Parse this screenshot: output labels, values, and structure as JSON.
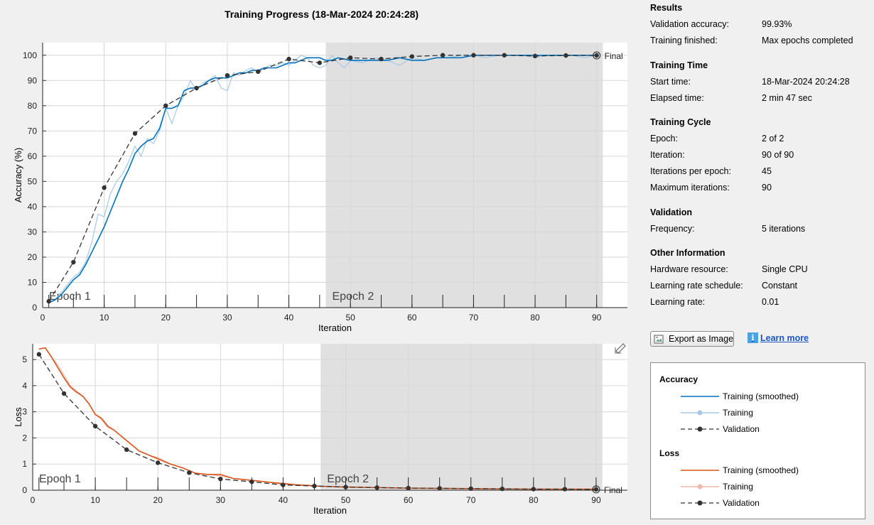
{
  "title": "Training Progress (18-Mar-2024 20:24:28)",
  "results": {
    "heading": "Results",
    "validation_accuracy_label": "Validation accuracy:",
    "validation_accuracy_value": "99.93%",
    "training_finished_label": "Training finished:",
    "training_finished_value": "Max epochs completed"
  },
  "training_time": {
    "heading": "Training Time",
    "start_label": "Start time:",
    "start_value": "18-Mar-2024 20:24:28",
    "elapsed_label": "Elapsed time:",
    "elapsed_value": "2 min 47 sec"
  },
  "training_cycle": {
    "heading": "Training Cycle",
    "epoch_label": "Epoch:",
    "epoch_value": "2 of 2",
    "iteration_label": "Iteration:",
    "iteration_value": "90 of 90",
    "ipe_label": "Iterations per epoch:",
    "ipe_value": "45",
    "max_iter_label": "Maximum iterations:",
    "max_iter_value": "90"
  },
  "validation": {
    "heading": "Validation",
    "frequency_label": "Frequency:",
    "frequency_value": "5 iterations"
  },
  "other": {
    "heading": "Other Information",
    "hardware_label": "Hardware resource:",
    "hardware_value": "Single CPU",
    "schedule_label": "Learning rate schedule:",
    "schedule_value": "Constant",
    "lr_label": "Learning rate:",
    "lr_value": "0.01"
  },
  "buttons": {
    "export": "Export as Image",
    "learn_more": "Learn more"
  },
  "legend": {
    "accuracy_heading": "Accuracy",
    "loss_heading": "Loss",
    "smoothed": "Training (smoothed)",
    "training": "Training",
    "validation": "Validation"
  },
  "colors": {
    "acc_smoothed": "#0072bd",
    "acc_training": "#a6c8e6",
    "loss_smoothed": "#d95319",
    "loss_training": "#f0b8a8",
    "validation": "#333333",
    "epoch_shade": "#e0e0e0"
  },
  "icons": {
    "export": "image-export-icon",
    "learn": "info-icon",
    "edit": "edit-plot-icon"
  },
  "chart_data": [
    {
      "type": "line",
      "xlabel": "Iteration",
      "ylabel": "Accuracy (%)",
      "xlim": [
        0,
        95
      ],
      "ylim": [
        0,
        105
      ],
      "xticks": [
        0,
        10,
        20,
        30,
        40,
        50,
        60,
        70,
        80,
        90
      ],
      "yticks": [
        0,
        10,
        20,
        30,
        40,
        50,
        60,
        70,
        80,
        90,
        100
      ],
      "epochs": [
        {
          "label": "Epoch 1",
          "start": 0,
          "end": 46,
          "shaded": false
        },
        {
          "label": "Epoch 2",
          "start": 46,
          "end": 91,
          "shaded": true
        }
      ],
      "final_label": "Final",
      "series": [
        {
          "name": "Training",
          "x": [
            1,
            2,
            3,
            4,
            5,
            6,
            7,
            8,
            9,
            10,
            11,
            12,
            13,
            14,
            15,
            16,
            17,
            18,
            19,
            20,
            21,
            22,
            23,
            24,
            25,
            26,
            27,
            28,
            29,
            30,
            31,
            32,
            33,
            34,
            35,
            36,
            37,
            38,
            39,
            40,
            41,
            42,
            43,
            44,
            45,
            46,
            47,
            48,
            49,
            50,
            52,
            54,
            56,
            58,
            60,
            62,
            64,
            66,
            68,
            70,
            72,
            74,
            76,
            78,
            80,
            82,
            84,
            86,
            88,
            90
          ],
          "y": [
            2,
            3,
            6,
            9,
            12,
            14,
            18,
            26,
            37,
            36,
            45,
            50,
            53,
            58,
            64,
            60,
            67,
            65,
            70,
            79,
            73,
            80,
            84,
            90,
            86,
            89,
            90,
            92,
            87,
            86,
            93,
            92,
            94,
            95,
            93,
            95,
            96,
            96,
            97,
            96,
            98,
            100,
            99,
            96,
            95,
            96,
            100,
            97,
            95,
            98,
            97,
            99,
            98,
            96,
            99,
            98,
            99,
            99,
            100,
            100,
            99,
            100,
            100,
            100,
            99,
            100,
            100,
            100,
            99,
            100
          ]
        },
        {
          "name": "Training (smoothed)",
          "x": [
            1,
            2,
            3,
            4,
            5,
            6,
            7,
            8,
            9,
            10,
            11,
            12,
            13,
            14,
            15,
            16,
            17,
            18,
            19,
            20,
            21,
            22,
            23,
            24,
            25,
            26,
            27,
            28,
            29,
            30,
            31,
            32,
            33,
            34,
            35,
            36,
            37,
            38,
            39,
            40,
            41,
            42,
            43,
            44,
            45,
            46,
            47,
            48,
            50,
            52,
            54,
            56,
            58,
            60,
            62,
            64,
            66,
            68,
            70,
            72,
            74,
            76,
            78,
            80,
            82,
            84,
            86,
            88,
            90
          ],
          "y": [
            2,
            3,
            5,
            8,
            11,
            13,
            17,
            22,
            27,
            32,
            38,
            44,
            50,
            55,
            61,
            64,
            66,
            67,
            71,
            79,
            79,
            80,
            86,
            87,
            87,
            88,
            90,
            91,
            91,
            91,
            92,
            93,
            93,
            94,
            94,
            95,
            95,
            95,
            96,
            97,
            97,
            98,
            99,
            99,
            99,
            98,
            98,
            99,
            98,
            98,
            98,
            98,
            99,
            98,
            98,
            99,
            99,
            99,
            100,
            100,
            100,
            100,
            100,
            100,
            100,
            100,
            100,
            100,
            100
          ]
        },
        {
          "name": "Validation",
          "x": [
            1,
            5,
            10,
            15,
            20,
            25,
            30,
            35,
            40,
            45,
            50,
            55,
            60,
            65,
            70,
            75,
            80,
            85,
            90
          ],
          "y": [
            2.5,
            18,
            47.5,
            69,
            80,
            87,
            92,
            93.5,
            98.5,
            97,
            99,
            98.5,
            99.5,
            100,
            100,
            100,
            99.7,
            99.9,
            99.93
          ]
        }
      ]
    },
    {
      "type": "line",
      "xlabel": "Iteration",
      "ylabel": "Loss",
      "xlim": [
        0,
        95
      ],
      "ylim": [
        0,
        5.6
      ],
      "xticks": [
        0,
        10,
        20,
        30,
        40,
        50,
        60,
        70,
        80,
        90
      ],
      "yticks": [
        0,
        1,
        2,
        3,
        4,
        5
      ],
      "epochs": [
        {
          "label": "Epoch 1",
          "start": 0,
          "end": 46,
          "shaded": false
        },
        {
          "label": "Epoch 2",
          "start": 46,
          "end": 91,
          "shaded": true
        }
      ],
      "final_label": "Final",
      "series": [
        {
          "name": "Training",
          "x": [
            1,
            2,
            3,
            4,
            5,
            6,
            7,
            8,
            9,
            10,
            11,
            12,
            13,
            14,
            15,
            16,
            17,
            18,
            19,
            20,
            22,
            24,
            26,
            28,
            30,
            32,
            34,
            36,
            38,
            40,
            42,
            44,
            46,
            50,
            55,
            60,
            65,
            70,
            75,
            80,
            85,
            90
          ],
          "y": [
            5.4,
            5.45,
            5.1,
            4.8,
            4.4,
            4.0,
            3.8,
            3.6,
            3.3,
            2.9,
            2.7,
            2.4,
            2.3,
            2.1,
            1.9,
            1.7,
            1.5,
            1.4,
            1.3,
            1.25,
            1.0,
            0.85,
            0.65,
            0.6,
            0.55,
            0.45,
            0.4,
            0.35,
            0.3,
            0.28,
            0.22,
            0.2,
            0.16,
            0.12,
            0.1,
            0.08,
            0.07,
            0.06,
            0.05,
            0.04,
            0.04,
            0.04
          ]
        },
        {
          "name": "Training (smoothed)",
          "x": [
            1,
            2,
            3,
            4,
            5,
            6,
            7,
            8,
            9,
            10,
            11,
            12,
            13,
            14,
            15,
            16,
            17,
            18,
            19,
            20,
            22,
            24,
            26,
            28,
            30,
            32,
            34,
            36,
            38,
            40,
            42,
            44,
            46,
            50,
            55,
            60,
            65,
            70,
            75,
            80,
            85,
            90
          ],
          "y": [
            5.4,
            5.45,
            5.1,
            4.7,
            4.3,
            3.95,
            3.75,
            3.6,
            3.3,
            2.9,
            2.75,
            2.45,
            2.3,
            2.1,
            1.9,
            1.7,
            1.5,
            1.4,
            1.3,
            1.2,
            1.0,
            0.85,
            0.65,
            0.6,
            0.6,
            0.45,
            0.4,
            0.35,
            0.3,
            0.25,
            0.2,
            0.18,
            0.15,
            0.12,
            0.1,
            0.08,
            0.07,
            0.06,
            0.05,
            0.04,
            0.04,
            0.04
          ]
        },
        {
          "name": "Validation",
          "x": [
            1,
            5,
            10,
            15,
            20,
            25,
            30,
            35,
            40,
            45,
            50,
            55,
            60,
            65,
            70,
            75,
            80,
            85,
            90
          ],
          "y": [
            5.2,
            3.7,
            2.45,
            1.55,
            1.05,
            0.67,
            0.43,
            0.32,
            0.2,
            0.16,
            0.12,
            0.1,
            0.08,
            0.07,
            0.06,
            0.05,
            0.04,
            0.04,
            0.03
          ]
        }
      ]
    }
  ]
}
